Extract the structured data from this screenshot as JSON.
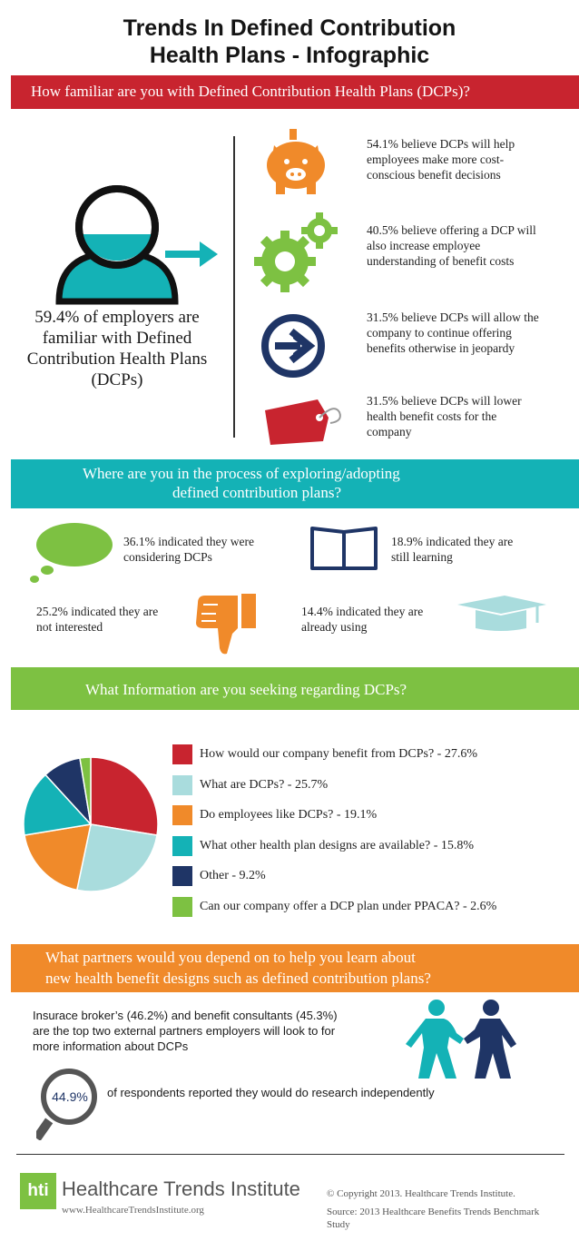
{
  "header": {
    "title_line1": "Trends In Defined Contribution",
    "title_line2": "Health Plans - Infographic"
  },
  "section1": {
    "question": "How familiar are you with Defined Contribution Health Plans (DCPs)?",
    "main_stat": "59.4% of employers are familiar with Defined Contribution Health Plans (DCPs)",
    "stats": [
      {
        "icon": "piggy-bank-icon",
        "text": "54.1% believe DCPs will help employees make more cost-conscious benefit decisions"
      },
      {
        "icon": "gears-icon",
        "text": "40.5% believe offering a DCP will also increase employee understanding of benefit costs"
      },
      {
        "icon": "arrow-circle-icon",
        "text": "31.5% believe DCPs will allow the company to continue offering benefits otherwise in jeopardy"
      },
      {
        "icon": "price-tag-icon",
        "text": "31.5% believe DCPs will lower health benefit costs for the company"
      }
    ]
  },
  "section2": {
    "question_line1": "Where are you in the process of exploring/adopting",
    "question_line2": "defined contribution plans?",
    "items": [
      {
        "icon": "speech-bubble-icon",
        "line1": "36.1% indicated they were",
        "line2": "considering DCPs"
      },
      {
        "icon": "book-icon",
        "line1": "18.9% indicated they are",
        "line2": "still learning"
      },
      {
        "icon": "thumbs-down-icon",
        "line1": "25.2% indicated they are",
        "line2": "not interested"
      },
      {
        "icon": "graduation-cap-icon",
        "line1": "14.4% indicated they are",
        "line2": "already using"
      }
    ]
  },
  "section3": {
    "question": "What Information are you seeking regarding DCPs?"
  },
  "chart_data": {
    "type": "pie",
    "categories": [
      "How would our company benefit from DCPs? - 27.6%",
      "What are DCPs? - 25.7%",
      "Do employees like DCPs? - 19.1%",
      "What other health plan designs are available? - 15.8%",
      "Other - 9.2%",
      "Can our company offer a DCP plan under PPACA? - 2.6%"
    ],
    "values": [
      27.6,
      25.7,
      19.1,
      15.8,
      9.2,
      2.6
    ],
    "colors": [
      "#c8242f",
      "#a9dcdd",
      "#f08a2a",
      "#14b2b6",
      "#1f3566",
      "#7dc142"
    ],
    "legend": "right"
  },
  "section4": {
    "question_line1": "What partners would you depend  on to help you learn about",
    "question_line2": "new health benefit designs such as defined contribution plans?",
    "partners_text_line1": "Insurace broker’s (46.2%) and benefit consultants (45.3%)",
    "partners_text_line2": "are the top two external partners employers will look to for",
    "partners_text_line3": "more information about DCPs",
    "research_value": "44.9%",
    "research_text": "of respondents reported they would do research independently"
  },
  "footer": {
    "logo_text": "hti",
    "brand": "Healthcare Trends Institute",
    "url": "www.HealthcareTrendsInstitute.org",
    "copyright": "© Copyright 2013. Healthcare Trends Institute.",
    "source": "Source: 2013 Healthcare Benefits Trends Benchmark Study"
  },
  "colors": {
    "red": "#c8242f",
    "teal": "#14b2b6",
    "green": "#7dc142",
    "orange": "#f08a2a",
    "navy": "#1f3566",
    "light_teal": "#a9dcdd"
  }
}
